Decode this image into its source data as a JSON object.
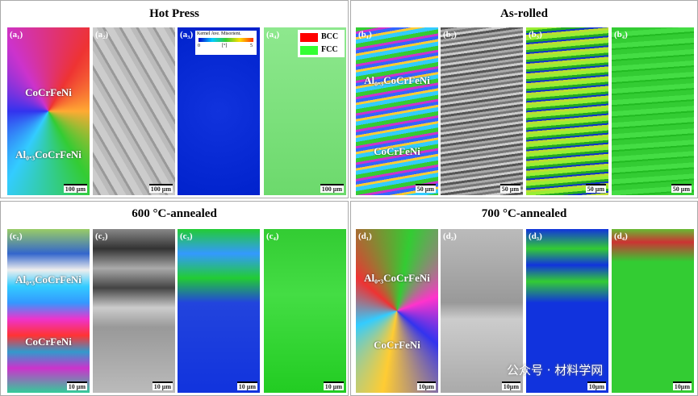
{
  "panels": [
    {
      "title": "Hot Press",
      "images": [
        {
          "label": "(a₁)",
          "overlays": [
            "CoCrFeNi",
            "Al₀.₃CoCrFeNi"
          ],
          "scale": "100 μm"
        },
        {
          "label": "(a₂)",
          "scale": "100 μm"
        },
        {
          "label": "(a₃)",
          "legend": {
            "title": "Kernel Ave. Misorient.",
            "min": "0",
            "unit": "[°]",
            "max": "5"
          }
        },
        {
          "label": "(a₄)",
          "scale": "100 μm",
          "phases": [
            "BCC",
            "FCC"
          ]
        }
      ]
    },
    {
      "title": "As-rolled",
      "images": [
        {
          "label": "(b₁)",
          "overlays": [
            "Al₀.₃CoCrFeNi",
            "CoCrFeNi"
          ],
          "scale": "50 μm"
        },
        {
          "label": "(b₂)",
          "scale": "50 μm"
        },
        {
          "label": "(b₃)",
          "scale": "50 μm"
        },
        {
          "label": "(b₄)",
          "scale": "50 μm"
        }
      ]
    },
    {
      "title": "600 °C-annealed",
      "images": [
        {
          "label": "(c₁)",
          "overlays": [
            "Al₀.₃CoCrFeNi",
            "CoCrFeNi"
          ],
          "scale": "10 μm"
        },
        {
          "label": "(c₂)",
          "scale": "10 μm"
        },
        {
          "label": "(c₃)",
          "scale": "10 μm"
        },
        {
          "label": "(c₄)",
          "scale": "10 μm"
        }
      ]
    },
    {
      "title": "700 °C-annealed",
      "images": [
        {
          "label": "(d₁)",
          "overlays": [
            "Al₀.₃CoCrFeNi",
            "CoCrFeNi"
          ],
          "scale": "10μm"
        },
        {
          "label": "(d₂)",
          "scale": "10μm"
        },
        {
          "label": "(d₃)",
          "scale": "10μm"
        },
        {
          "label": "(d₄)",
          "scale": "10μm"
        }
      ]
    }
  ],
  "watermark": "公众号 · 材料学网"
}
